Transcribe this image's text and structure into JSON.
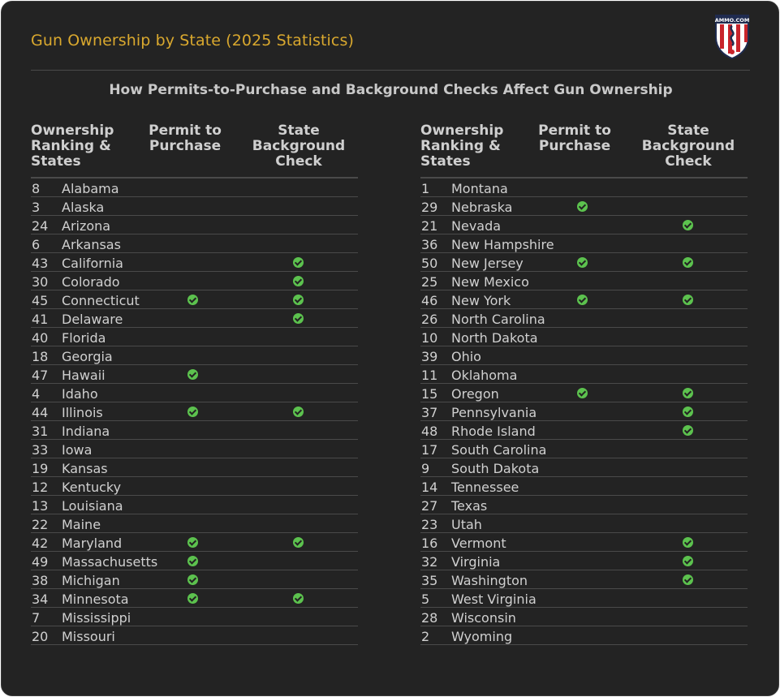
{
  "title": "Gun Ownership by State (2025 Statistics)",
  "logo_text": "AMMO.COM",
  "subtitle": "How Permits-to-Purchase and Background Checks Affect Gun Ownership",
  "colors": {
    "background": "#232323",
    "title": "#d9a82e",
    "check": "#5cc24e",
    "rule": "#4a4a4a"
  },
  "chart_data": {
    "type": "table",
    "columns": [
      "Ownership Ranking & States",
      "Permit to Purchase",
      "State Background Check"
    ],
    "header_lines": {
      "c1": "Ownership\nRanking &\nStates",
      "c2": "Permit to\nPurchase",
      "c3": "State\nBackground\nCheck"
    },
    "left_rows": [
      {
        "rank": "8",
        "state": "Alabama",
        "permit": false,
        "bg": false
      },
      {
        "rank": "3",
        "state": "Alaska",
        "permit": false,
        "bg": false
      },
      {
        "rank": "24",
        "state": "Arizona",
        "permit": false,
        "bg": false
      },
      {
        "rank": "6",
        "state": "Arkansas",
        "permit": false,
        "bg": false
      },
      {
        "rank": "43",
        "state": "California",
        "permit": false,
        "bg": true
      },
      {
        "rank": "30",
        "state": "Colorado",
        "permit": false,
        "bg": true
      },
      {
        "rank": "45",
        "state": "Connecticut",
        "permit": true,
        "bg": true
      },
      {
        "rank": "41",
        "state": "Delaware",
        "permit": false,
        "bg": true
      },
      {
        "rank": "40",
        "state": "Florida",
        "permit": false,
        "bg": false
      },
      {
        "rank": "18",
        "state": "Georgia",
        "permit": false,
        "bg": false
      },
      {
        "rank": "47",
        "state": "Hawaii",
        "permit": true,
        "bg": false
      },
      {
        "rank": "4",
        "state": "Idaho",
        "permit": false,
        "bg": false
      },
      {
        "rank": "44",
        "state": "Illinois",
        "permit": true,
        "bg": true
      },
      {
        "rank": "31",
        "state": "Indiana",
        "permit": false,
        "bg": false
      },
      {
        "rank": "33",
        "state": "Iowa",
        "permit": false,
        "bg": false
      },
      {
        "rank": "19",
        "state": "Kansas",
        "permit": false,
        "bg": false
      },
      {
        "rank": "12",
        "state": "Kentucky",
        "permit": false,
        "bg": false
      },
      {
        "rank": "13",
        "state": "Louisiana",
        "permit": false,
        "bg": false
      },
      {
        "rank": "22",
        "state": "Maine",
        "permit": false,
        "bg": false
      },
      {
        "rank": "42",
        "state": "Maryland",
        "permit": true,
        "bg": true
      },
      {
        "rank": "49",
        "state": "Massachusetts",
        "permit": true,
        "bg": false
      },
      {
        "rank": "38",
        "state": "Michigan",
        "permit": true,
        "bg": false
      },
      {
        "rank": "34",
        "state": "Minnesota",
        "permit": true,
        "bg": true
      },
      {
        "rank": "7",
        "state": "Mississippi",
        "permit": false,
        "bg": false
      },
      {
        "rank": "20",
        "state": "Missouri",
        "permit": false,
        "bg": false
      }
    ],
    "right_rows": [
      {
        "rank": "1",
        "state": "Montana",
        "permit": false,
        "bg": false
      },
      {
        "rank": "29",
        "state": "Nebraska",
        "permit": true,
        "bg": false
      },
      {
        "rank": "21",
        "state": "Nevada",
        "permit": false,
        "bg": true
      },
      {
        "rank": "36",
        "state": "New Hampshire",
        "permit": false,
        "bg": false
      },
      {
        "rank": "50",
        "state": "New Jersey",
        "permit": true,
        "bg": true
      },
      {
        "rank": "25",
        "state": "New Mexico",
        "permit": false,
        "bg": false
      },
      {
        "rank": "46",
        "state": "New York",
        "permit": true,
        "bg": true
      },
      {
        "rank": "26",
        "state": "North Carolina",
        "permit": false,
        "bg": false
      },
      {
        "rank": "10",
        "state": "North Dakota",
        "permit": false,
        "bg": false
      },
      {
        "rank": "39",
        "state": "Ohio",
        "permit": false,
        "bg": false
      },
      {
        "rank": "11",
        "state": "Oklahoma",
        "permit": false,
        "bg": false
      },
      {
        "rank": "15",
        "state": "Oregon",
        "permit": true,
        "bg": true
      },
      {
        "rank": "37",
        "state": "Pennsylvania",
        "permit": false,
        "bg": true
      },
      {
        "rank": "48",
        "state": "Rhode Island",
        "permit": false,
        "bg": true
      },
      {
        "rank": "17",
        "state": "South Carolina",
        "permit": false,
        "bg": false
      },
      {
        "rank": "9",
        "state": "South Dakota",
        "permit": false,
        "bg": false
      },
      {
        "rank": "14",
        "state": "Tennessee",
        "permit": false,
        "bg": false
      },
      {
        "rank": "27",
        "state": "Texas",
        "permit": false,
        "bg": false
      },
      {
        "rank": "23",
        "state": "Utah",
        "permit": false,
        "bg": false
      },
      {
        "rank": "16",
        "state": "Vermont",
        "permit": false,
        "bg": true
      },
      {
        "rank": "32",
        "state": "Virginia",
        "permit": false,
        "bg": true
      },
      {
        "rank": "35",
        "state": "Washington",
        "permit": false,
        "bg": true
      },
      {
        "rank": "5",
        "state": "West Virginia",
        "permit": false,
        "bg": false
      },
      {
        "rank": "28",
        "state": "Wisconsin",
        "permit": false,
        "bg": false
      },
      {
        "rank": "2",
        "state": "Wyoming",
        "permit": false,
        "bg": false
      }
    ]
  }
}
